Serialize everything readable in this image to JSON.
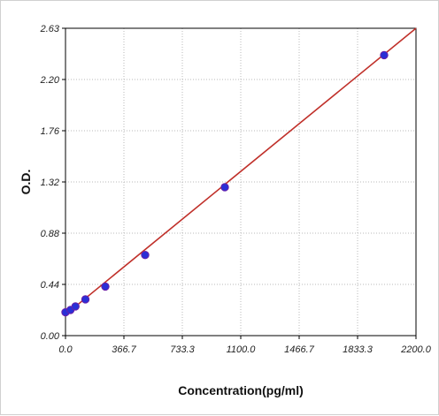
{
  "chart_data": {
    "type": "scatter",
    "title": "",
    "xlabel": "Concentration(pg/ml)",
    "ylabel": "O.D.",
    "xlim": [
      0,
      2200
    ],
    "ylim": [
      0,
      2.63
    ],
    "x_ticks": [
      "0.0",
      "366.7",
      "733.3",
      "1100.0",
      "1466.7",
      "1833.3",
      "2200.0"
    ],
    "y_ticks": [
      "0.00",
      "0.44",
      "0.88",
      "1.32",
      "1.76",
      "2.20",
      "2.63"
    ],
    "grid": true,
    "series": [
      {
        "type": "scatter",
        "color": "#2a2fd6",
        "points": [
          {
            "x": 0,
            "y": 0.2
          },
          {
            "x": 31.25,
            "y": 0.22
          },
          {
            "x": 62.5,
            "y": 0.25
          },
          {
            "x": 125,
            "y": 0.31
          },
          {
            "x": 250,
            "y": 0.42
          },
          {
            "x": 500,
            "y": 0.69
          },
          {
            "x": 1000,
            "y": 1.27
          },
          {
            "x": 2000,
            "y": 2.4
          }
        ]
      },
      {
        "type": "line",
        "color": "#c0302a",
        "points": [
          {
            "x": 0,
            "y": 0.18
          },
          {
            "x": 2200,
            "y": 2.63
          }
        ]
      }
    ]
  }
}
